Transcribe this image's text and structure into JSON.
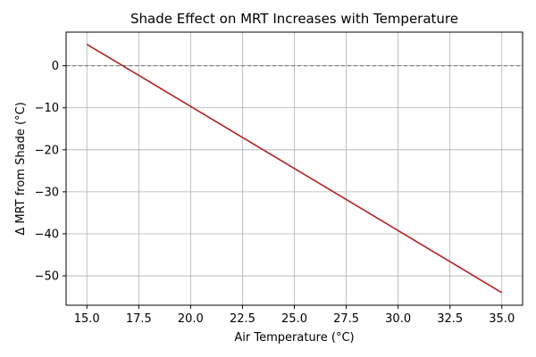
{
  "chart_data": {
    "type": "line",
    "title": "Shade Effect on MRT Increases with Temperature",
    "xlabel": "Air Temperature (°C)",
    "ylabel": "Δ MRT from Shade (°C)",
    "xlim": [
      14.0,
      36.0
    ],
    "ylim": [
      -57.0,
      8.0
    ],
    "x_ticks": [
      15.0,
      17.5,
      20.0,
      22.5,
      25.0,
      27.5,
      30.0,
      32.5,
      35.0
    ],
    "x_tick_labels": [
      "15.0",
      "17.5",
      "20.0",
      "22.5",
      "25.0",
      "27.5",
      "30.0",
      "32.5",
      "35.0"
    ],
    "y_ticks": [
      0,
      -10,
      -20,
      -30,
      -40,
      -50
    ],
    "y_tick_labels": [
      "0",
      "−10",
      "−20",
      "−30",
      "−40",
      "−50"
    ],
    "grid": true,
    "reference_line": {
      "y": 0,
      "style": "dashed",
      "color": "#808080"
    },
    "series": [
      {
        "color": "#b22222",
        "x": [
          15.0,
          35.0
        ],
        "y": [
          5.1,
          -54.0
        ]
      }
    ]
  }
}
